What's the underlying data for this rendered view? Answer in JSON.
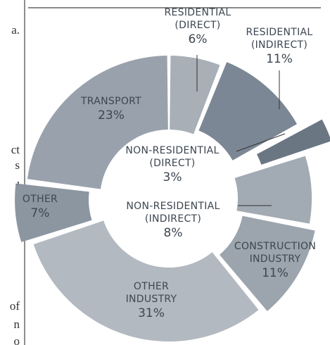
{
  "chart_data": {
    "type": "donut",
    "categories": [
      "RESIDENTIAL (DIRECT)",
      "RESIDENTIAL (INDIRECT)",
      "NON-RESIDENTIAL (DIRECT)",
      "NON-RESIDENTIAL (INDIRECT)",
      "CONSTRUCTION INDUSTRY",
      "OTHER INDUSTRY",
      "OTHER",
      "TRANSPORT"
    ],
    "values": [
      6,
      11,
      3,
      8,
      11,
      31,
      7,
      23
    ],
    "value_labels": [
      "6%",
      "11%",
      "3%",
      "8%",
      "11%",
      "31%",
      "7%",
      "23%"
    ],
    "colors": [
      "#a9afb7",
      "#7b8794",
      "#6b7683",
      "#a2aab3",
      "#9ca5ae",
      "#b3b9c0",
      "#8c96a1",
      "#99a2ac"
    ]
  },
  "margin_text": [
    "a.",
    "ct",
    "s",
    ",",
    "of",
    "n",
    "o"
  ]
}
